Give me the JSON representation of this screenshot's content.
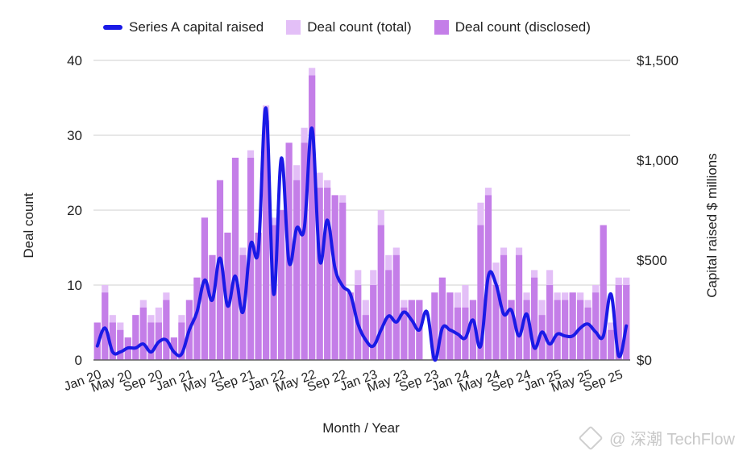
{
  "chart_data": {
    "type": "bar+line",
    "title": "",
    "xlabel": "Month / Year",
    "ylabel_left": "Deal count",
    "ylabel_right": "Capital raised $ millions",
    "ylim_left": [
      0,
      40
    ],
    "ylim_right": [
      0,
      1500
    ],
    "left_ticks": [
      "0",
      "10",
      "20",
      "30",
      "40"
    ],
    "right_ticks": [
      "$0",
      "$500",
      "$1,000",
      "$1,500"
    ],
    "x_tick_labels": [
      "Jan 20",
      "May 20",
      "Sep 20",
      "Jan 21",
      "May 21",
      "Sep 21",
      "Jan 22",
      "May 22",
      "Sep 22",
      "Jan 23",
      "May 23",
      "Sep 23",
      "Jan 24",
      "May 24",
      "Sep 24",
      "Jan 25",
      "May 25",
      "Sep 25"
    ],
    "x_tick_index": [
      0,
      4,
      8,
      12,
      16,
      20,
      24,
      28,
      32,
      36,
      40,
      44,
      48,
      52,
      56,
      60,
      64,
      68
    ],
    "grid": true,
    "legend_position": "top",
    "series": [
      {
        "name": "Series A capital raised",
        "color": "#1a1ae6",
        "axis": "right",
        "type": "line",
        "values": [
          70,
          160,
          40,
          40,
          60,
          60,
          80,
          40,
          90,
          100,
          40,
          30,
          150,
          240,
          400,
          300,
          510,
          270,
          420,
          240,
          580,
          550,
          1260,
          330,
          1010,
          490,
          660,
          660,
          1160,
          500,
          700,
          460,
          370,
          330,
          180,
          100,
          70,
          150,
          220,
          190,
          240,
          200,
          150,
          240,
          0,
          160,
          150,
          130,
          110,
          200,
          70,
          420,
          380,
          230,
          250,
          120,
          230,
          60,
          140,
          80,
          130,
          120,
          120,
          160,
          180,
          140,
          120,
          330,
          20,
          170
        ]
      },
      {
        "name": "Deal count (total)",
        "color": "#e3bff7",
        "axis": "left",
        "type": "bar",
        "values": [
          5,
          10,
          6,
          5,
          3,
          6,
          8,
          6,
          7,
          9,
          3,
          6,
          8,
          11,
          19,
          14,
          24,
          17,
          27,
          15,
          28,
          17,
          34,
          19,
          20,
          29,
          26,
          31,
          39,
          25,
          24,
          22,
          22,
          9,
          12,
          8,
          12,
          20,
          14,
          15,
          8,
          8,
          8,
          0,
          9,
          11,
          9,
          9,
          10,
          8,
          21,
          23,
          13,
          15,
          8,
          15,
          9,
          12,
          8,
          12,
          9,
          9,
          9,
          9,
          8,
          10,
          18,
          5,
          11,
          11
        ]
      },
      {
        "name": "Deal count (disclosed)",
        "color": "#c47ee8",
        "axis": "left",
        "type": "bar",
        "values": [
          5,
          9,
          5,
          4,
          3,
          6,
          7,
          5,
          5,
          8,
          3,
          5,
          8,
          11,
          19,
          14,
          24,
          17,
          27,
          14,
          27,
          17,
          32,
          18,
          20,
          29,
          24,
          29,
          38,
          23,
          23,
          22,
          21,
          9,
          10,
          6,
          10,
          18,
          12,
          14,
          7,
          8,
          8,
          0,
          9,
          11,
          9,
          7,
          7,
          8,
          18,
          22,
          10,
          14,
          8,
          14,
          8,
          11,
          6,
          10,
          8,
          8,
          9,
          8,
          7,
          9,
          18,
          4,
          10,
          10
        ]
      }
    ]
  },
  "legend": {
    "items": [
      "Series A capital raised",
      "Deal count (total)",
      "Deal count (disclosed)"
    ]
  },
  "watermark": {
    "text": "@ 深潮 TechFlow"
  }
}
